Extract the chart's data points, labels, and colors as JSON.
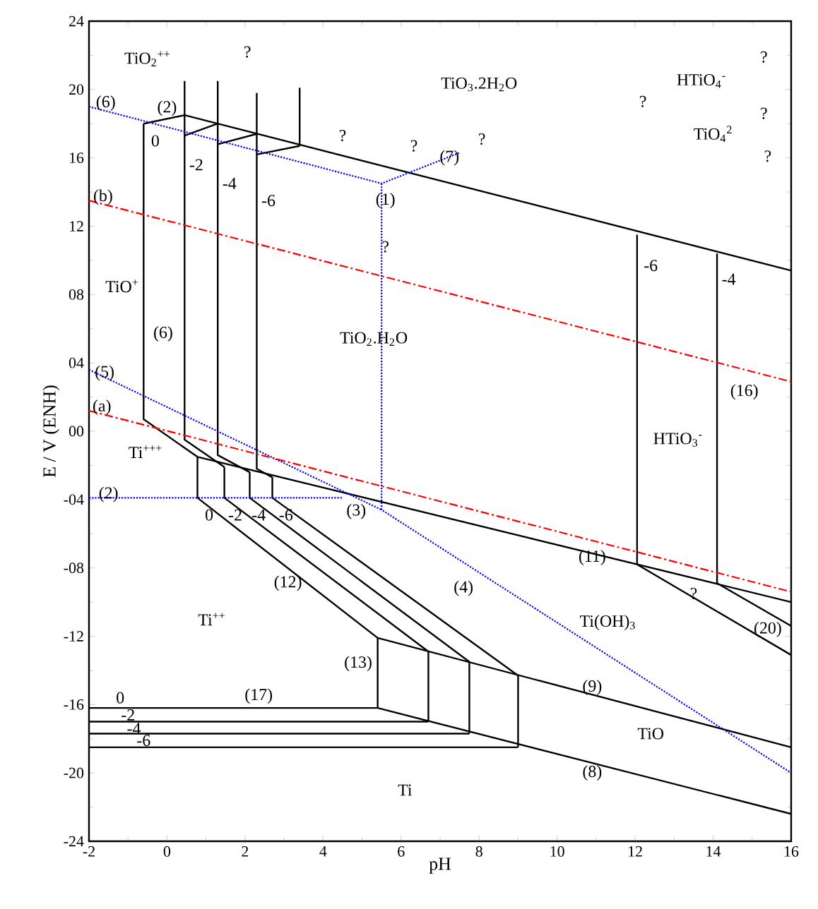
{
  "chart_data": {
    "type": "line",
    "xlabel": "pH",
    "ylabel": "E / V (ENH)",
    "xlim": [
      -2,
      16
    ],
    "ylim": [
      -24,
      24
    ],
    "xticks": [
      -2,
      0,
      2,
      4,
      6,
      8,
      10,
      12,
      14,
      16
    ],
    "yticks": [
      24,
      20,
      16,
      12,
      {
        "value": 8,
        "label": "08"
      },
      {
        "value": 4,
        "label": "04"
      },
      {
        "value": 0,
        "label": "00"
      },
      {
        "value": -4,
        "label": "-04"
      },
      {
        "value": -8,
        "label": "-08"
      },
      -12,
      -16,
      -20,
      -24
    ],
    "series": [
      {
        "x": [
          -0.6,
          0.45,
          16
        ],
        "values": [
          18.0,
          18.5,
          9.4
        ],
        "color": "#000000",
        "line_style": "solid"
      },
      {
        "x": [
          0.45,
          1.3
        ],
        "values": [
          17.3,
          18.0
        ],
        "color": "#000000",
        "line_style": "solid"
      },
      {
        "x": [
          1.3,
          2.3
        ],
        "values": [
          16.8,
          17.4
        ],
        "color": "#000000",
        "line_style": "solid"
      },
      {
        "x": [
          2.3,
          3.4
        ],
        "values": [
          16.2,
          16.7
        ],
        "color": "#000000",
        "line_style": "solid"
      },
      {
        "x": [
          -0.6,
          -0.6,
          0.78,
          16
        ],
        "values": [
          18.0,
          0.7,
          -1.5,
          -10.0
        ],
        "color": "#000000",
        "line_style": "solid"
      },
      {
        "x": [
          0.45,
          0.45,
          1.47
        ],
        "values": [
          20.5,
          -0.5,
          -2.1
        ],
        "color": "#000000",
        "line_style": "solid"
      },
      {
        "x": [
          1.3,
          1.3,
          2.12
        ],
        "values": [
          20.5,
          -1.4,
          -2.4
        ],
        "color": "#000000",
        "line_style": "solid"
      },
      {
        "x": [
          2.3,
          2.3,
          2.7
        ],
        "values": [
          19.8,
          -2.2,
          -2.7
        ],
        "color": "#000000",
        "line_style": "solid"
      },
      {
        "x": [
          3.4,
          3.4
        ],
        "values": [
          20.1,
          16.7
        ],
        "color": "#000000",
        "line_style": "solid"
      },
      {
        "x": [
          0.78,
          0.78,
          5.4,
          5.4
        ],
        "values": [
          -1.5,
          -3.9,
          -12.1,
          -16.2
        ],
        "color": "#000000",
        "line_style": "solid"
      },
      {
        "x": [
          1.47,
          1.47,
          6.7,
          6.7
        ],
        "values": [
          -2.1,
          -3.9,
          -12.9,
          -17.0
        ],
        "color": "#000000",
        "line_style": "solid"
      },
      {
        "x": [
          2.12,
          2.12,
          7.75,
          7.75
        ],
        "values": [
          -2.4,
          -3.9,
          -13.5,
          -17.7
        ],
        "color": "#000000",
        "line_style": "solid"
      },
      {
        "x": [
          2.7,
          2.7,
          9.0,
          9.0
        ],
        "values": [
          -2.7,
          -3.9,
          -14.3,
          -18.5
        ],
        "color": "#000000",
        "line_style": "solid"
      },
      {
        "x": [
          5.4,
          16
        ],
        "values": [
          -12.1,
          -18.5
        ],
        "color": "#000000",
        "line_style": "solid"
      },
      {
        "x": [
          -2,
          5.4,
          16
        ],
        "values": [
          -16.2,
          -16.2,
          -22.4
        ],
        "color": "#000000",
        "line_style": "solid"
      },
      {
        "x": [
          -2,
          6.7
        ],
        "values": [
          -17.0,
          -17.0
        ],
        "color": "#000000",
        "line_style": "solid"
      },
      {
        "x": [
          -2,
          7.75
        ],
        "values": [
          -17.7,
          -17.7
        ],
        "color": "#000000",
        "line_style": "solid"
      },
      {
        "x": [
          -2,
          9.0
        ],
        "values": [
          -18.5,
          -18.5
        ],
        "color": "#000000",
        "line_style": "solid"
      },
      {
        "x": [
          12.05,
          12.05,
          16
        ],
        "values": [
          11.5,
          -7.8,
          -13.1
        ],
        "color": "#000000",
        "line_style": "solid"
      },
      {
        "x": [
          14.1,
          14.1,
          16
        ],
        "values": [
          10.4,
          -8.9,
          -11.4
        ],
        "color": "#000000",
        "line_style": "solid"
      },
      {
        "x": [
          -2,
          5.5,
          7.5
        ],
        "values": [
          19.0,
          14.5,
          16.3
        ],
        "color": "#0000ff",
        "line_style": "dotted"
      },
      {
        "x": [
          5.5,
          5.5,
          16
        ],
        "values": [
          14.5,
          -4.6,
          -20.0
        ],
        "color": "#0000ff",
        "line_style": "dotted"
      },
      {
        "x": [
          -2,
          5.5
        ],
        "values": [
          3.6,
          -4.6
        ],
        "color": "#0000ff",
        "line_style": "dotted"
      },
      {
        "x": [
          -2,
          4.5
        ],
        "values": [
          -3.9,
          -3.9
        ],
        "color": "#0000ff",
        "line_style": "dotted"
      },
      {
        "x": [
          -2,
          16
        ],
        "values": [
          13.5,
          2.9
        ],
        "color": "#ff0000",
        "line_style": "dashed"
      },
      {
        "x": [
          -2,
          16
        ],
        "values": [
          1.2,
          -9.4
        ],
        "color": "#ff0000",
        "line_style": "dashed"
      }
    ],
    "annotations": [
      "TiO$_{2}$$^{++}$",
      "?",
      "TiO$_{3}$.2H$_{2}$O",
      "HTiO$_{4}$$^{-}$",
      "?",
      "?",
      "TiO$_{4}$$^{2}$",
      "?",
      "?",
      {
        "text": "(6)",
        "x": -1.57,
        "y": 19.2
      },
      "(2)",
      "0",
      "-2",
      "-4",
      "-6",
      "?",
      "?",
      {
        "text": "(7)",
        "x": 7.24,
        "y": 16.0
      },
      "?",
      {
        "text": "(1)",
        "x": 5.6,
        "y": 13.5
      },
      {
        "text": "?",
        "x": 5.6,
        "y": 10.8
      },
      {
        "text": "(b)",
        "x": -1.64,
        "y": 13.7
      },
      {
        "text": "(a)",
        "x": -1.67,
        "y": 1.4
      },
      "TiO$^{+}$",
      "(6)",
      {
        "text": "(5)",
        "x": -1.6,
        "y": 3.4
      },
      "TiO$_{2}$.H$_{2}$O",
      "-6",
      "-4",
      "(16)",
      "HTiO$_{3}$$^{-}$",
      "Ti$^{+++}$",
      {
        "text": "(2)",
        "x": -1.5,
        "y": -3.7
      },
      {
        "text": "0",
        "x": 1.08,
        "y": -4.9
      },
      {
        "text": "-2",
        "x": 1.75,
        "y": -4.9
      },
      {
        "text": "-4",
        "x": 2.35,
        "y": -4.9
      },
      {
        "text": "-6",
        "x": 3.05,
        "y": -4.9
      },
      "(3)",
      {
        "text": "(11)",
        "x": 10.9,
        "y": -7.4
      },
      "(12)",
      "(4)",
      {
        "text": "?",
        "x": 13.5,
        "y": -9.5
      },
      "(20)",
      "Ti$^{++}$",
      "Ti(OH)$_{3}$",
      "(13)",
      "0",
      {
        "text": "-2",
        "x": -1.0,
        "y": -16.6
      },
      {
        "text": "-4",
        "x": -0.85,
        "y": -17.4
      },
      {
        "text": "-6",
        "x": -0.6,
        "y": -18.1
      },
      "(17)",
      {
        "text": "(9)",
        "x": 10.9,
        "y": -15.0
      },
      "TiO",
      "(8)",
      "Ti"
    ]
  }
}
